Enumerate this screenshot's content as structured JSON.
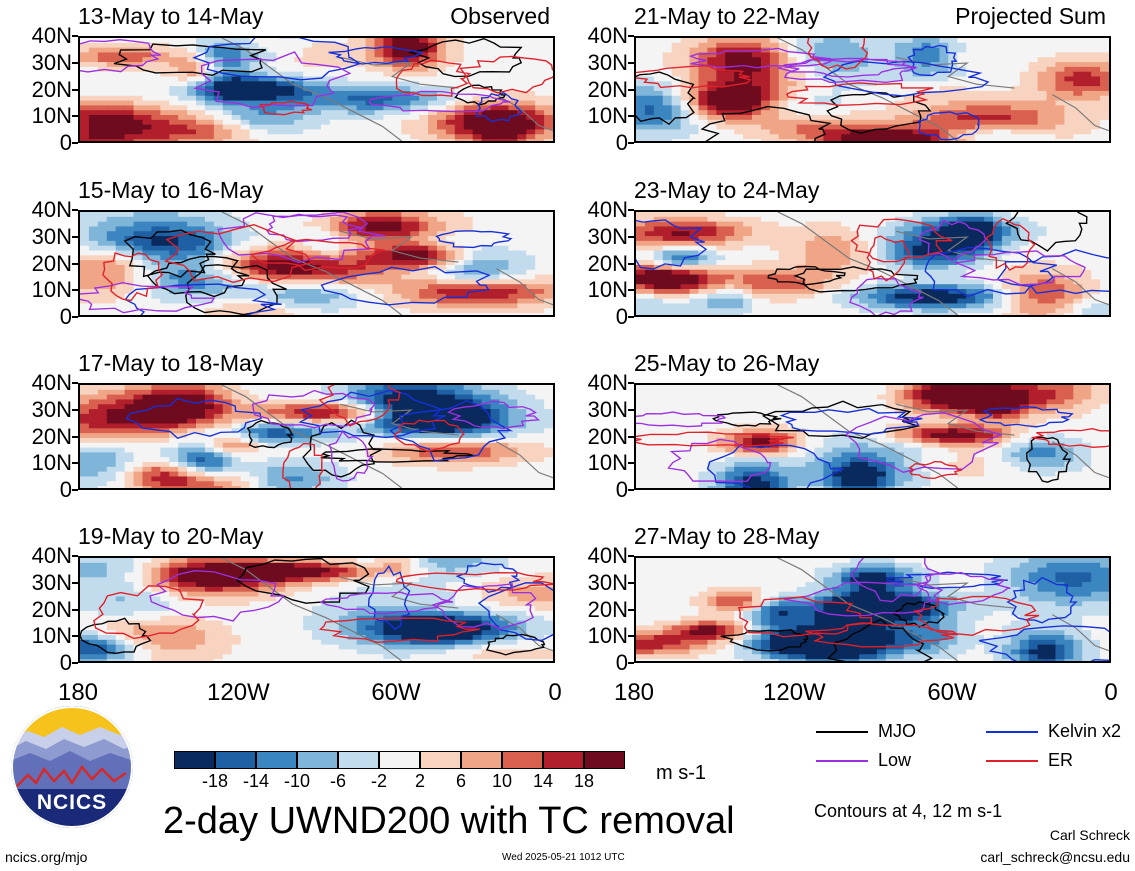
{
  "chart_data": {
    "type": "heatmap",
    "panel_layout": "4 rows x 2 columns; left column Observed, right column Projected Sum",
    "variable": "2-day UWND200 with TC removal",
    "units": "m s-1",
    "x_ticks": [
      "180",
      "120W",
      "60W",
      "0"
    ],
    "y_ticks": [
      "40N",
      "30N",
      "20N",
      "10N",
      "0"
    ],
    "xlim": [
      -180,
      0
    ],
    "ylim": [
      0,
      40
    ],
    "left_column_tag": "Observed",
    "right_column_tag": "Projected Sum",
    "panels": [
      {
        "title": "13-May to 14-May",
        "column": "Observed"
      },
      {
        "title": "21-May to 22-May",
        "column": "Projected Sum"
      },
      {
        "title": "15-May to 16-May",
        "column": "Observed"
      },
      {
        "title": "23-May to 24-May",
        "column": "Projected Sum"
      },
      {
        "title": "17-May to 18-May",
        "column": "Observed"
      },
      {
        "title": "25-May to 26-May",
        "column": "Projected Sum"
      },
      {
        "title": "19-May to 20-May",
        "column": "Observed"
      },
      {
        "title": "27-May to 28-May",
        "column": "Projected Sum"
      }
    ],
    "colorbar": {
      "levels": [
        "-18",
        "-14",
        "-10",
        "-6",
        "-2",
        "2",
        "6",
        "10",
        "14",
        "18"
      ],
      "colors": [
        "#0a2a5e",
        "#1f5fa3",
        "#3b86c0",
        "#7fb5d9",
        "#c3dced",
        "#f4f4f4",
        "#f7d3c0",
        "#f0a587",
        "#d9604e",
        "#b21f2c",
        "#6e0b1e"
      ]
    },
    "contour_legend": [
      {
        "name": "MJO",
        "color": "#000000"
      },
      {
        "name": "Kelvin x2",
        "color": "#1530d8"
      },
      {
        "name": "Low",
        "color": "#9b30e0"
      },
      {
        "name": "ER",
        "color": "#e0202a"
      }
    ],
    "contour_note": "Contours at 4, 12 m s-1"
  },
  "footer": {
    "title": "2-day UWND200 with TC removal",
    "units": "m s-1",
    "contour_note": "Contours at 4, 12 m s-1",
    "author": "Carl Schreck",
    "email": "carl_schreck@ncsu.edu",
    "url": "ncics.org/mjo",
    "timestamp": "Wed 2025-05-21 1012 UTC",
    "logo_text": "NCICS"
  }
}
